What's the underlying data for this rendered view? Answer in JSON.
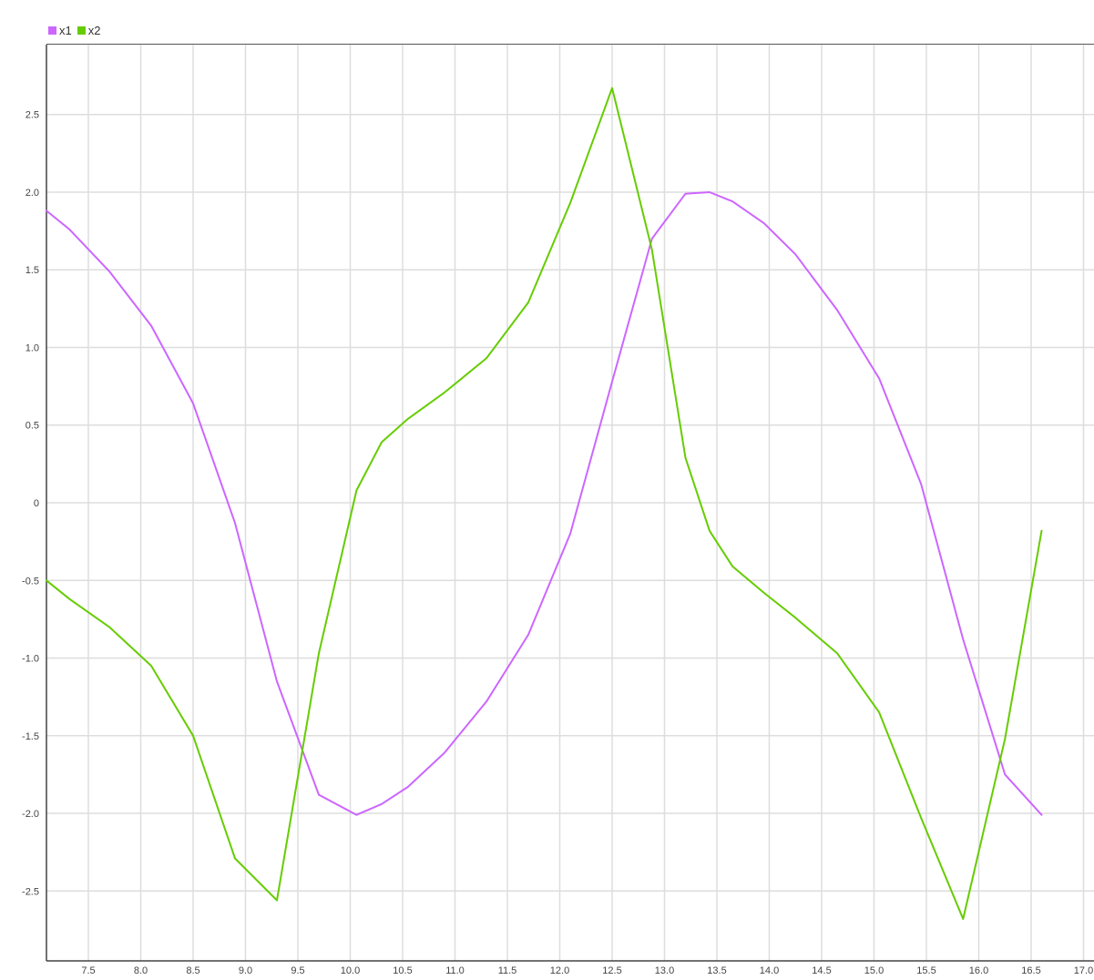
{
  "legend": [
    {
      "label": "x1",
      "color": "#cc66ff"
    },
    {
      "label": "x2",
      "color": "#66cc00"
    }
  ],
  "chart_data": {
    "type": "line",
    "title": "",
    "xlabel": "",
    "ylabel": "",
    "grid": true,
    "legend_position": "top-left",
    "xlim": [
      7.1,
      17.1
    ],
    "ylim": [
      -2.95,
      2.95
    ],
    "x_ticks": [
      7.5,
      8.0,
      8.5,
      9.0,
      9.5,
      10.0,
      10.5,
      11.0,
      11.5,
      12.0,
      12.5,
      13.0,
      13.5,
      14.0,
      14.5,
      15.0,
      15.5,
      16.0,
      16.5,
      17.0
    ],
    "x_tick_labels": [
      "7.5",
      "8.0",
      "8.5",
      "9.0",
      "9.5",
      "10.0",
      "10.5",
      "11.0",
      "11.5",
      "12.0",
      "12.5",
      "13.0",
      "13.5",
      "14.0",
      "14.5",
      "15.0",
      "15.5",
      "16.0",
      "16.5",
      "17.0"
    ],
    "y_ticks": [
      -2.5,
      -2.0,
      -1.5,
      -1.0,
      -0.5,
      0,
      0.5,
      1.0,
      1.5,
      2.0,
      2.5
    ],
    "y_tick_labels": [
      "-2.5",
      "-2.0",
      "-1.5",
      "-1.0",
      "-0.5",
      "0",
      "0.5",
      "1.0",
      "1.5",
      "2.0",
      "2.5"
    ],
    "series": [
      {
        "name": "x1",
        "color": "#cc66ff",
        "points": [
          [
            7.1,
            1.88
          ],
          [
            7.32,
            1.76
          ],
          [
            7.7,
            1.49
          ],
          [
            8.1,
            1.14
          ],
          [
            8.5,
            0.64
          ],
          [
            8.9,
            -0.13
          ],
          [
            9.3,
            -1.15
          ],
          [
            9.7,
            -1.88
          ],
          [
            10.06,
            -2.01
          ],
          [
            10.3,
            -1.94
          ],
          [
            10.55,
            -1.83
          ],
          [
            10.9,
            -1.61
          ],
          [
            11.3,
            -1.28
          ],
          [
            11.7,
            -0.85
          ],
          [
            12.1,
            -0.2
          ],
          [
            12.5,
            0.78
          ],
          [
            12.88,
            1.7
          ],
          [
            13.2,
            1.99
          ],
          [
            13.43,
            2.0
          ],
          [
            13.65,
            1.94
          ],
          [
            13.95,
            1.8
          ],
          [
            14.25,
            1.6
          ],
          [
            14.65,
            1.24
          ],
          [
            15.05,
            0.8
          ],
          [
            15.45,
            0.12
          ],
          [
            15.85,
            -0.88
          ],
          [
            16.25,
            -1.75
          ],
          [
            16.6,
            -2.01
          ]
        ]
      },
      {
        "name": "x2",
        "color": "#66cc00",
        "points": [
          [
            7.1,
            -0.5
          ],
          [
            7.32,
            -0.62
          ],
          [
            7.7,
            -0.8
          ],
          [
            8.1,
            -1.05
          ],
          [
            8.5,
            -1.5
          ],
          [
            8.9,
            -2.29
          ],
          [
            9.3,
            -2.56
          ],
          [
            9.7,
            -0.97
          ],
          [
            10.06,
            0.08
          ],
          [
            10.3,
            0.39
          ],
          [
            10.55,
            0.54
          ],
          [
            10.9,
            0.71
          ],
          [
            11.3,
            0.93
          ],
          [
            11.7,
            1.29
          ],
          [
            12.1,
            1.93
          ],
          [
            12.5,
            2.67
          ],
          [
            12.88,
            1.63
          ],
          [
            13.2,
            0.29
          ],
          [
            13.43,
            -0.18
          ],
          [
            13.65,
            -0.41
          ],
          [
            13.95,
            -0.58
          ],
          [
            14.25,
            -0.74
          ],
          [
            14.65,
            -0.97
          ],
          [
            15.05,
            -1.35
          ],
          [
            15.45,
            -2.03
          ],
          [
            15.85,
            -2.68
          ],
          [
            16.25,
            -1.52
          ],
          [
            16.6,
            -0.18
          ]
        ]
      }
    ]
  }
}
